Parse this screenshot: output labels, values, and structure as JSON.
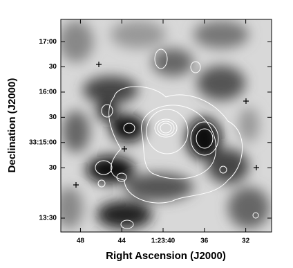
{
  "chart_data": {
    "type": "image",
    "xlabel": "Right Ascension (J2000)",
    "ylabel": "Declination (J2000)",
    "xlim": [
      49.9,
      29.5
    ],
    "xticks": [
      48,
      44,
      {
        "value": 40,
        "label": "1:23:40"
      },
      36,
      32
    ],
    "ylim": [
      793.5,
      1046.5
    ],
    "yticks": [
      {
        "value": 1020,
        "label": "17:00"
      },
      {
        "value": 990,
        "label": "30"
      },
      {
        "value": 960,
        "label": "16:00"
      },
      {
        "value": 930,
        "label": "30"
      },
      {
        "value": 900,
        "label": "33:15:00"
      },
      {
        "value": 870,
        "label": "30"
      },
      {
        "value": 810,
        "label": "13:30"
      }
    ]
  }
}
